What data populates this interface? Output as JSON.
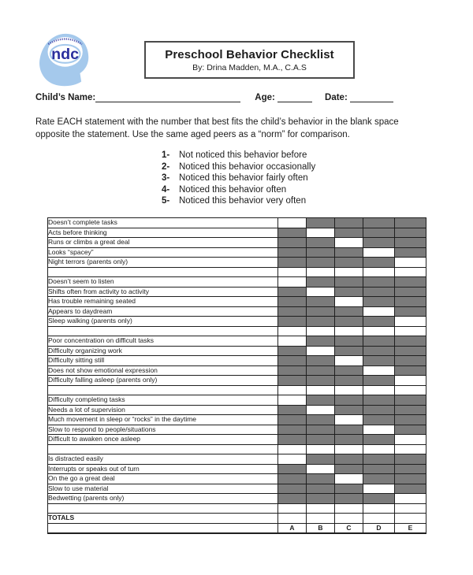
{
  "logo": {
    "text": "ndc"
  },
  "title_box": {
    "title": "Preschool Behavior Checklist",
    "byline": "By: Drina Madden, M.A., C.A.S"
  },
  "info_row": {
    "name_label": "Child’s Name:",
    "age_label": "Age:",
    "date_label": "Date:"
  },
  "instructions": {
    "line1": "Rate EACH statement with the number that best fits the child’s behavior in the blank space",
    "line2": "opposite the statement.  Use the same aged peers as a “norm” for comparison."
  },
  "rating_scale": [
    {
      "num": "1-",
      "label": "Not noticed this behavior before"
    },
    {
      "num": "2-",
      "label": "Noticed this behavior occasionally"
    },
    {
      "num": "3-",
      "label": "Noticed this behavior fairly often"
    },
    {
      "num": "4-",
      "label": "Noticed this behavior often"
    },
    {
      "num": "5-",
      "label": "Noticed this behavior very often"
    }
  ],
  "checklist": {
    "columns": [
      "A",
      "B",
      "C",
      "D",
      "E"
    ],
    "totals_label": "TOTALS",
    "groups": [
      {
        "rows": [
          {
            "label": "Doesn’t complete tasks",
            "blank_col": 0
          },
          {
            "label": "Acts before thinking",
            "blank_col": 1
          },
          {
            "label": "Runs or climbs a great deal",
            "blank_col": 2
          },
          {
            "label": "Looks “spacey”",
            "blank_col": 3
          },
          {
            "label": "Night terrors (parents only)",
            "blank_col": 4
          }
        ]
      },
      {
        "rows": [
          {
            "label": "Doesn’t seem to listen",
            "blank_col": 0
          },
          {
            "label": "Shifts often from activity to activity",
            "blank_col": 1
          },
          {
            "label": "Has trouble remaining seated",
            "blank_col": 2
          },
          {
            "label": "Appears to daydream",
            "blank_col": 3
          },
          {
            "label": "Sleep walking (parents only)",
            "blank_col": 4
          }
        ]
      },
      {
        "rows": [
          {
            "label": "Poor concentration on difficult tasks",
            "blank_col": 0
          },
          {
            "label": "Difficulty organizing work",
            "blank_col": 1
          },
          {
            "label": "Difficulty sitting still",
            "blank_col": 2
          },
          {
            "label": "Does not show emotional expression",
            "blank_col": 3
          },
          {
            "label": "Difficulty falling asleep (parents only)",
            "blank_col": 4
          }
        ]
      },
      {
        "rows": [
          {
            "label": "Difficulty completing tasks",
            "blank_col": 0
          },
          {
            "label": "Needs a lot of supervision",
            "blank_col": 1
          },
          {
            "label": "Much movement in sleep or “rocks” in the daytime",
            "blank_col": 2
          },
          {
            "label": "Slow to respond to people/situations",
            "blank_col": 3
          },
          {
            "label": "Difficult to awaken once asleep",
            "blank_col": 4
          }
        ]
      },
      {
        "rows": [
          {
            "label": "Is distracted easily",
            "blank_col": 0
          },
          {
            "label": "Interrupts or speaks out of turn",
            "blank_col": 1
          },
          {
            "label": "On the go a great deal",
            "blank_col": 2
          },
          {
            "label": "Slow to use material",
            "blank_col": 3
          },
          {
            "label": "Bedwetting (parents only)",
            "blank_col": 4
          }
        ]
      }
    ]
  },
  "colors": {
    "shaded_cell": "#7b7b7b",
    "logo_light_blue": "#a5c9ec",
    "logo_dark_blue": "#2b2f9e"
  }
}
